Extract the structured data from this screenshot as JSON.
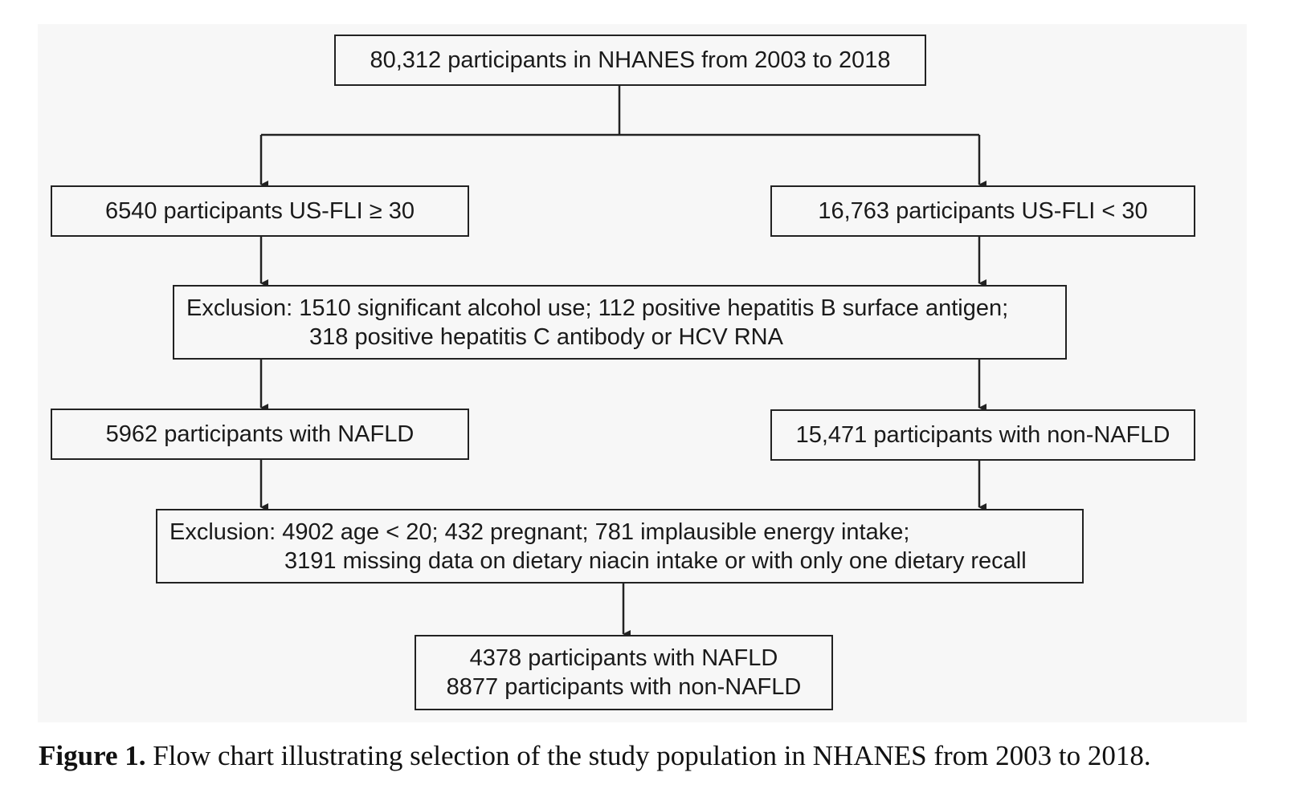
{
  "boxes": {
    "top": "80,312 participants in NHANES from 2003 to 2018",
    "left1": "6540 participants US-FLI ≥ 30",
    "right1": "16,763 participants US-FLI < 30",
    "exclusion1": {
      "line1": "Exclusion: 1510 significant alcohol use; 112 positive hepatitis B surface antigen;",
      "line2": "318 positive hepatitis C antibody or HCV RNA"
    },
    "left2": "5962 participants with NAFLD",
    "right2": "15,471 participants with non-NAFLD",
    "exclusion2": {
      "line1": "Exclusion: 4902 age < 20; 432 pregnant; 781 implausible energy intake;",
      "line2": "3191 missing data on dietary niacin intake or with only one dietary recall"
    },
    "final": {
      "line1": "4378 participants with NAFLD",
      "line2": "8877 participants with non-NAFLD"
    }
  },
  "caption": {
    "label": "Figure 1.",
    "text": "Flow chart illustrating selection of the study population in NHANES from 2003 to 2018."
  }
}
